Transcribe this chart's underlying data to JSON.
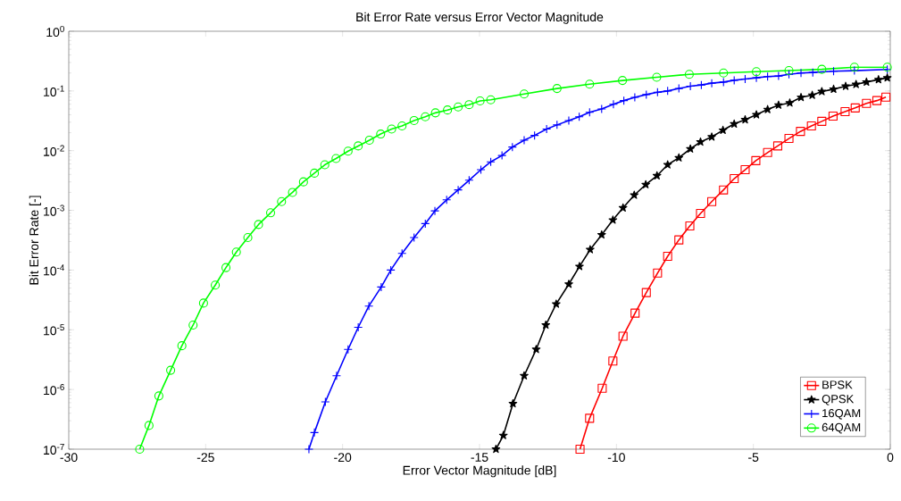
{
  "chart_data": {
    "type": "line",
    "title": "Bit Error Rate versus Error Vector Magnitude",
    "xlabel": "Error Vector Magnitude [dB]",
    "ylabel": "Bit Error Rate [-]",
    "log": "y",
    "grid": false,
    "legend": "bottom right",
    "line_style": "solid",
    "xlim": [
      -30,
      0
    ],
    "ylim": [
      1e-07,
      1
    ],
    "xticks": [
      -30,
      -25,
      -20,
      -15,
      -10,
      -5,
      0
    ],
    "yticks": [
      {
        "value": 1e-07,
        "label": "10$^{-7}$"
      },
      {
        "value": 1e-06,
        "label": "10$^{-6}$"
      },
      {
        "value": 1e-05,
        "label": "10$^{-5}$"
      },
      {
        "value": 0.0001,
        "label": "10$^{-4}$"
      },
      {
        "value": 0.001,
        "label": "10$^{-3}$"
      },
      {
        "value": 0.01,
        "label": "10$^{-2}$"
      },
      {
        "value": 0.1,
        "label": "10$^{-1}$"
      },
      {
        "value": 1,
        "label": "10$^{0}$"
      }
    ],
    "series": [
      {
        "name": "BPSK",
        "color": "#ff0000",
        "marker": "square",
        "x": [
          -11.33,
          -10.98,
          -10.52,
          -10.13,
          -9.76,
          -9.32,
          -8.91,
          -8.5,
          -8.13,
          -7.72,
          -7.32,
          -6.93,
          -6.52,
          -6.09,
          -5.7,
          -5.3,
          -4.91,
          -4.48,
          -4.11,
          -3.7,
          -3.28,
          -2.88,
          -2.5,
          -2.09,
          -1.65,
          -1.28,
          -0.87,
          -0.49,
          -0.16
        ],
        "values": [
          1e-07,
          3.3e-07,
          1.05e-06,
          3e-06,
          7.8e-06,
          1.9e-05,
          4.2e-05,
          8.9e-05,
          0.00017,
          0.00032,
          0.00055,
          0.00089,
          0.0014,
          0.0022,
          0.0034,
          0.0048,
          0.0068,
          0.0093,
          0.012,
          0.016,
          0.021,
          0.026,
          0.031,
          0.038,
          0.045,
          0.052,
          0.062,
          0.069,
          0.079
        ]
      },
      {
        "name": "QPSK",
        "color": "#000000",
        "marker": "star",
        "x": [
          -14.4,
          -14.13,
          -13.78,
          -13.37,
          -12.93,
          -12.58,
          -12.2,
          -11.74,
          -11.35,
          -10.96,
          -10.54,
          -10.13,
          -9.76,
          -9.35,
          -8.93,
          -8.52,
          -8.13,
          -7.72,
          -7.3,
          -6.93,
          -6.52,
          -6.11,
          -5.7,
          -5.3,
          -4.89,
          -4.48,
          -4.08,
          -3.67,
          -3.26,
          -2.85,
          -2.5,
          -2.07,
          -1.63,
          -1.25,
          -0.87,
          -0.43,
          -0.11
        ],
        "values": [
          1e-07,
          1.7e-07,
          5.8e-07,
          1.7e-06,
          4.7e-06,
          1.2e-05,
          2.7e-05,
          5.8e-05,
          0.000115,
          0.00022,
          0.00039,
          0.00069,
          0.0011,
          0.0018,
          0.0027,
          0.0038,
          0.0058,
          0.0076,
          0.0107,
          0.014,
          0.017,
          0.022,
          0.028,
          0.033,
          0.04,
          0.049,
          0.058,
          0.063,
          0.078,
          0.085,
          0.098,
          0.107,
          0.12,
          0.129,
          0.141,
          0.155,
          0.166
        ]
      },
      {
        "name": "16QAM",
        "color": "#0000ff",
        "marker": "cross",
        "x": [
          -21.23,
          -21.03,
          -20.63,
          -20.22,
          -19.8,
          -19.43,
          -19.04,
          -18.59,
          -18.24,
          -17.83,
          -17.39,
          -16.98,
          -16.63,
          -16.2,
          -15.78,
          -15.38,
          -14.95,
          -14.59,
          -14.18,
          -13.8,
          -13.37,
          -12.99,
          -12.55,
          -12.17,
          -11.74,
          -11.36,
          -10.98,
          -10.54,
          -10.11,
          -9.73,
          -9.33,
          -8.91,
          -8.5,
          -8.13,
          -7.72,
          -7.3,
          -6.9,
          -6.52,
          -6.09,
          -5.7,
          -5.3,
          -4.89,
          -4.48,
          -4.08,
          -3.7,
          -3.26,
          -2.83,
          -2.07,
          -1.31,
          -0.54,
          -0.11
        ],
        "values": [
          1e-07,
          1.9e-07,
          6.2e-07,
          1.7e-06,
          4.7e-06,
          1.1e-05,
          2.5e-05,
          5.2e-05,
          0.0001,
          0.00019,
          0.00035,
          0.0006,
          0.00098,
          0.0015,
          0.0022,
          0.0032,
          0.0048,
          0.0065,
          0.0083,
          0.0115,
          0.015,
          0.018,
          0.023,
          0.027,
          0.032,
          0.037,
          0.044,
          0.05,
          0.06,
          0.069,
          0.078,
          0.087,
          0.095,
          0.1,
          0.11,
          0.12,
          0.126,
          0.135,
          0.141,
          0.151,
          0.158,
          0.166,
          0.174,
          0.178,
          0.19,
          0.2,
          0.204,
          0.214,
          0.219,
          null,
          0.229
        ]
      },
      {
        "name": "64QAM",
        "color": "#00ff00",
        "marker": "circle",
        "x": [
          -27.41,
          -27.07,
          -26.71,
          -26.28,
          -25.87,
          -25.46,
          -25.08,
          -24.65,
          -24.26,
          -23.88,
          -23.46,
          -23.07,
          -22.63,
          -22.23,
          -21.83,
          -21.43,
          -21.03,
          -20.65,
          -20.24,
          -19.8,
          -19.43,
          -19.02,
          -18.61,
          -18.21,
          -17.83,
          -17.39,
          -16.98,
          -16.61,
          -16.17,
          -15.78,
          -15.38,
          -14.98,
          -14.59,
          -13.37,
          -12.17,
          -10.98,
          -9.78,
          -8.53,
          -7.34,
          -6.09,
          -4.89,
          -3.7,
          -2.5,
          -1.31,
          -0.11
        ],
        "values": [
          1e-07,
          2.5e-07,
          7.8e-07,
          2.1e-06,
          5.4e-06,
          1.2e-05,
          2.8e-05,
          5.6e-05,
          0.00011,
          0.0002,
          0.00035,
          0.00058,
          0.00091,
          0.0014,
          0.002,
          0.003,
          0.0042,
          0.0058,
          0.0074,
          0.0098,
          0.012,
          0.015,
          0.019,
          0.023,
          0.026,
          0.032,
          0.037,
          0.043,
          0.048,
          0.054,
          0.059,
          0.068,
          0.071,
          0.089,
          0.11,
          0.13,
          0.15,
          0.17,
          0.19,
          0.2,
          0.21,
          0.22,
          0.23,
          0.25,
          0.25
        ]
      }
    ]
  }
}
